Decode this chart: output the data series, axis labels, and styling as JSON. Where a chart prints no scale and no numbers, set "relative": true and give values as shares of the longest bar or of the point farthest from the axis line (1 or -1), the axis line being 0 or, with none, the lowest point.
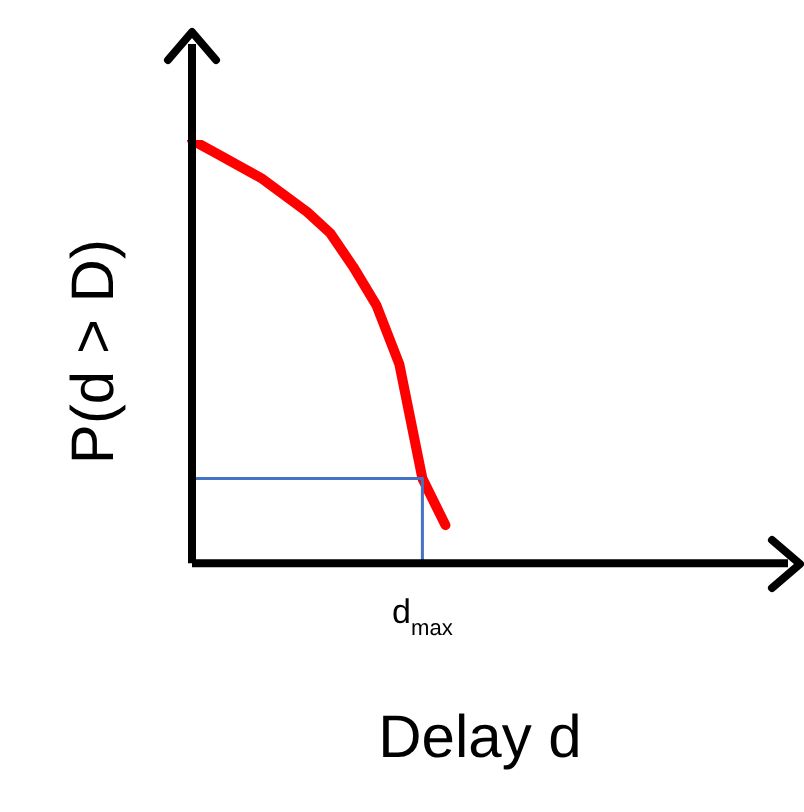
{
  "chart_data": {
    "type": "line",
    "relative": true,
    "xlabel": "Delay d",
    "ylabel": "P(d > D)",
    "categories": [
      null,
      null,
      null,
      null,
      null,
      null,
      null,
      null,
      null,
      null,
      null,
      null,
      null,
      null,
      null,
      null,
      null,
      null,
      null,
      null,
      null,
      null,
      null,
      null,
      null,
      null
    ],
    "series": [
      {
        "color": "#ff0000",
        "values": [
          1.0,
          0.97,
          0.94,
          0.91,
          0.87,
          0.83,
          0.78,
          0.7,
          0.61,
          0.47,
          0.2,
          0.09,
          null,
          null,
          null,
          null,
          null,
          null,
          null,
          null,
          null,
          null,
          null,
          null,
          null,
          null
        ]
      }
    ],
    "ref_lines": [
      {
        "axis": "y",
        "value": 0.2,
        "label": "d$_{max}$",
        "color": "#4472c4"
      }
    ],
    "grid": false,
    "legend": false,
    "marker": "none",
    "line_style": "solid"
  }
}
